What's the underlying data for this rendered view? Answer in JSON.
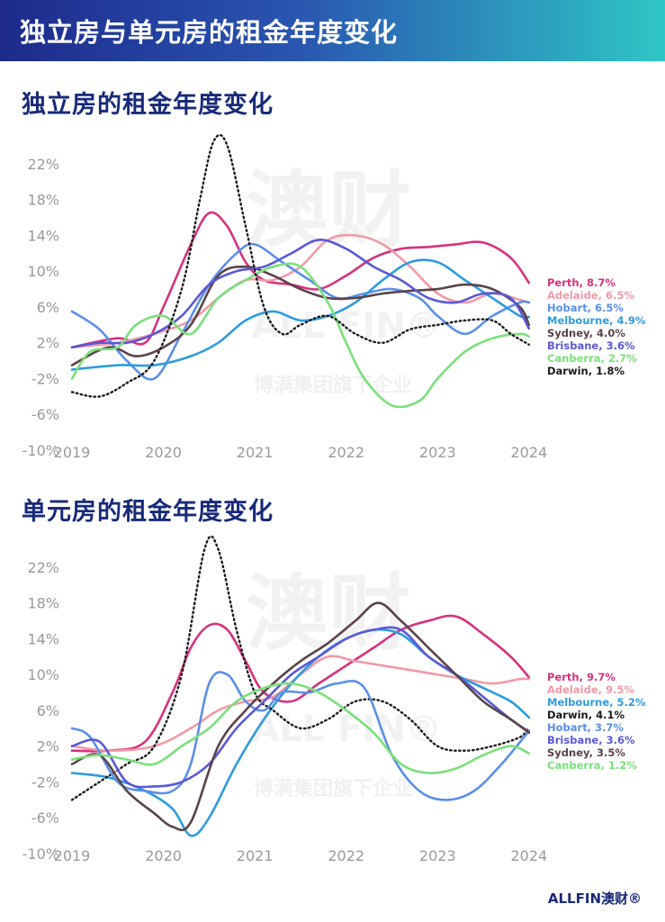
{
  "header": {
    "title": "独立房与单元房的租金年度变化"
  },
  "logo": {
    "text": "ALLFIN澳财®"
  },
  "watermark": {
    "text_top": "澳财",
    "text_mid": "ALL FIN®",
    "text_bottom": "博满集团旗下企业"
  },
  "chart_data": [
    {
      "type": "line",
      "title": "独立房的租金年度变化",
      "x_ticks": [
        "2019",
        "2020",
        "2021",
        "2022",
        "2023",
        "2024"
      ],
      "y_ticks": [
        "22%",
        "18%",
        "14%",
        "10%",
        "6%",
        "2%",
        "-2%",
        "-6%",
        "-10%"
      ],
      "ylim": [
        -10,
        24
      ],
      "xlim": [
        2019,
        2024.1
      ],
      "grid": false,
      "legend": "labels at line ends (right)",
      "series": [
        {
          "name": "Perth",
          "label": "Perth, 8.7%",
          "color": "#d6317f",
          "dotted": false,
          "x": [
            2019,
            2019.5,
            2019.8,
            2020,
            2020.3,
            2020.5,
            2020.7,
            2020.9,
            2021.1,
            2021.4,
            2021.7,
            2022,
            2022.3,
            2022.6,
            2022.9,
            2023.2,
            2023.5,
            2023.8,
            2024
          ],
          "y": [
            1.5,
            2.5,
            2,
            6,
            13,
            16.5,
            15,
            11,
            9,
            8.5,
            8,
            9.5,
            11.5,
            12.5,
            12.7,
            13,
            13.2,
            11.5,
            8.7
          ]
        },
        {
          "name": "Adelaide",
          "label": "Adelaide, 6.5%",
          "color": "#f09aa8",
          "dotted": false,
          "x": [
            2019,
            2019.5,
            2019.9,
            2020.3,
            2020.6,
            2020.9,
            2021.2,
            2021.5,
            2021.8,
            2022.1,
            2022.4,
            2022.7,
            2023,
            2023.3,
            2023.6,
            2023.9,
            2024
          ],
          "y": [
            1.5,
            2,
            3,
            4.5,
            7,
            9,
            9,
            10.5,
            13.5,
            14,
            13,
            10.5,
            7.5,
            6.5,
            7.5,
            6.8,
            6.5
          ]
        },
        {
          "name": "Hobart",
          "label": "Hobart, 6.5%",
          "color": "#5b8fe8",
          "dotted": false,
          "x": [
            2019,
            2019.3,
            2019.6,
            2019.9,
            2020.2,
            2020.5,
            2020.8,
            2021,
            2021.3,
            2021.6,
            2021.9,
            2022.2,
            2022.5,
            2022.8,
            2023,
            2023.3,
            2023.6,
            2023.9,
            2024
          ],
          "y": [
            5.5,
            3.5,
            0,
            -2,
            3,
            8.5,
            12,
            13,
            11,
            9,
            7,
            7.5,
            8,
            7,
            5,
            3,
            5,
            6.5,
            6.5
          ]
        },
        {
          "name": "Melbourne",
          "label": "Melbourne, 4.9%",
          "color": "#2e9be0",
          "dotted": false,
          "x": [
            2019,
            2019.5,
            2019.9,
            2020.3,
            2020.6,
            2020.9,
            2021.2,
            2021.5,
            2021.8,
            2022.1,
            2022.4,
            2022.7,
            2023,
            2023.3,
            2023.6,
            2023.9,
            2024
          ],
          "y": [
            -1,
            -0.5,
            -0.5,
            0.5,
            2,
            4.5,
            5.5,
            4.5,
            5,
            6.5,
            9,
            11,
            11,
            9,
            7,
            5,
            4.9
          ]
        },
        {
          "name": "Sydney",
          "label": "Sydney, 4.0%",
          "color": "#5a4348",
          "dotted": false,
          "x": [
            2019,
            2019.4,
            2019.7,
            2020,
            2020.3,
            2020.6,
            2020.9,
            2021.2,
            2021.5,
            2021.8,
            2022.1,
            2022.4,
            2022.7,
            2023,
            2023.3,
            2023.6,
            2023.9,
            2024
          ],
          "y": [
            -0.5,
            1.5,
            0.5,
            1.5,
            4,
            9.5,
            10.5,
            9.5,
            8,
            7,
            7,
            7.5,
            7.8,
            8,
            8.5,
            8,
            6,
            4
          ]
        },
        {
          "name": "Brisbane",
          "label": "Brisbane, 3.6%",
          "color": "#5b58d6",
          "dotted": false,
          "x": [
            2019,
            2019.3,
            2019.6,
            2019.9,
            2020.2,
            2020.5,
            2020.8,
            2021.1,
            2021.4,
            2021.7,
            2022,
            2022.3,
            2022.6,
            2022.9,
            2023.2,
            2023.5,
            2023.8,
            2024
          ],
          "y": [
            1.5,
            2,
            2,
            3,
            5,
            8.5,
            10,
            10.5,
            12,
            13.5,
            12.5,
            10.5,
            9,
            7,
            6.5,
            7.5,
            7,
            3.6
          ]
        },
        {
          "name": "Canberra",
          "label": "Canberra, 2.7%",
          "color": "#7ae07a",
          "dotted": false,
          "x": [
            2019,
            2019.2,
            2019.5,
            2019.7,
            2020,
            2020.3,
            2020.6,
            2020.9,
            2021.2,
            2021.5,
            2021.8,
            2022,
            2022.2,
            2022.5,
            2022.8,
            2023,
            2023.3,
            2023.6,
            2023.9,
            2024
          ],
          "y": [
            -2,
            1,
            1.5,
            4,
            5,
            3,
            7,
            9,
            10.5,
            10.5,
            6.5,
            2,
            -2,
            -5,
            -4.5,
            -2,
            1,
            2.5,
            3,
            2.7
          ]
        },
        {
          "name": "Darwin",
          "label": "Darwin, 1.8%",
          "color": "#1a1a1a",
          "dotted": true,
          "x": [
            2019,
            2019.3,
            2019.6,
            2019.9,
            2020.2,
            2020.4,
            2020.55,
            2020.7,
            2020.9,
            2021.1,
            2021.3,
            2021.5,
            2021.8,
            2022.1,
            2022.4,
            2022.7,
            2023,
            2023.3,
            2023.6,
            2023.8,
            2024
          ],
          "y": [
            -3.5,
            -4,
            -2.5,
            0,
            8,
            18,
            24.5,
            24,
            15,
            6,
            3,
            4,
            5,
            3,
            2,
            3.5,
            4,
            4.5,
            4.5,
            3,
            1.8
          ]
        }
      ]
    },
    {
      "type": "line",
      "title": "单元房的租金年度变化",
      "x_ticks": [
        "2019",
        "2020",
        "2021",
        "2022",
        "2023",
        "2024"
      ],
      "y_ticks": [
        "22%",
        "18%",
        "14%",
        "10%",
        "6%",
        "2%",
        "-2%",
        "-6%",
        "-10%"
      ],
      "ylim": [
        -10,
        24
      ],
      "xlim": [
        2019,
        2024.1
      ],
      "grid": false,
      "legend": "labels at line ends (right)",
      "series": [
        {
          "name": "Perth",
          "label": "Perth, 9.7%",
          "color": "#d6317f",
          "dotted": false,
          "x": [
            2019,
            2019.4,
            2019.8,
            2020.1,
            2020.3,
            2020.5,
            2020.7,
            2020.9,
            2021.1,
            2021.4,
            2021.7,
            2022,
            2022.3,
            2022.6,
            2022.9,
            2023.2,
            2023.5,
            2023.8,
            2024
          ],
          "y": [
            1.5,
            1.5,
            2.5,
            8,
            13,
            15.5,
            15,
            11.5,
            8,
            7,
            9,
            11,
            13,
            15,
            16,
            16.5,
            14.5,
            12,
            9.7
          ]
        },
        {
          "name": "Adelaide",
          "label": "Adelaide, 9.5%",
          "color": "#f09aa8",
          "dotted": false,
          "x": [
            2019,
            2019.4,
            2019.9,
            2020.3,
            2020.6,
            2020.9,
            2021.2,
            2021.5,
            2021.8,
            2022.1,
            2022.4,
            2022.7,
            2023,
            2023.3,
            2023.6,
            2023.9,
            2024
          ],
          "y": [
            2,
            1.5,
            2,
            4,
            6,
            7,
            7.5,
            10,
            12,
            11.5,
            11,
            10.5,
            10,
            9.5,
            9,
            9.5,
            9.5
          ]
        },
        {
          "name": "Melbourne",
          "label": "Melbourne, 5.2%",
          "color": "#2e9be0",
          "dotted": false,
          "x": [
            2019,
            2019.4,
            2019.8,
            2020.1,
            2020.3,
            2020.5,
            2020.8,
            2021.1,
            2021.4,
            2021.7,
            2022,
            2022.3,
            2022.6,
            2022.9,
            2023.2,
            2023.5,
            2023.8,
            2024
          ],
          "y": [
            -1,
            -1.5,
            -3,
            -5,
            -8,
            -6,
            0,
            5,
            9,
            12,
            14,
            15,
            14.5,
            12,
            10,
            8.5,
            7,
            5.2
          ]
        },
        {
          "name": "Darwin",
          "label": "Darwin, 4.1%",
          "color": "#1a1a1a",
          "dotted": true,
          "x": [
            2019,
            2019.3,
            2019.6,
            2019.9,
            2020.2,
            2020.45,
            2020.6,
            2020.8,
            2021,
            2021.2,
            2021.5,
            2021.8,
            2022.1,
            2022.4,
            2022.7,
            2023,
            2023.3,
            2023.6,
            2023.9,
            2024
          ],
          "y": [
            -4,
            -2,
            0,
            2,
            10,
            24,
            24,
            15,
            8,
            6,
            4,
            5,
            7,
            7,
            5,
            2,
            1.5,
            2,
            3,
            4.1
          ]
        },
        {
          "name": "Hobart",
          "label": "Hobart, 3.7%",
          "color": "#5b8fe8",
          "dotted": false,
          "x": [
            2019,
            2019.2,
            2019.5,
            2019.8,
            2020.1,
            2020.3,
            2020.5,
            2020.7,
            2020.9,
            2021.1,
            2021.3,
            2021.6,
            2021.9,
            2022.2,
            2022.5,
            2022.8,
            2023.1,
            2023.4,
            2023.7,
            2024
          ],
          "y": [
            4,
            3,
            -2,
            -3,
            -3,
            0,
            9,
            10,
            7,
            6,
            8,
            8,
            9,
            8.5,
            1,
            -3,
            -4,
            -3,
            0,
            3.7
          ]
        },
        {
          "name": "Brisbane",
          "label": "Brisbane, 3.6%",
          "color": "#5b58d6",
          "dotted": false,
          "x": [
            2019,
            2019.3,
            2019.6,
            2019.9,
            2020.2,
            2020.5,
            2020.8,
            2021.1,
            2021.4,
            2021.7,
            2022,
            2022.3,
            2022.6,
            2022.9,
            2023.2,
            2023.5,
            2023.8,
            2024
          ],
          "y": [
            2,
            2.5,
            -2,
            -2.5,
            -2,
            0,
            4,
            7,
            10,
            12,
            14,
            15,
            15,
            12,
            10,
            7.5,
            5,
            3.6
          ]
        },
        {
          "name": "Sydney",
          "label": "Sydney, 3.5%",
          "color": "#5a4348",
          "dotted": false,
          "x": [
            2019,
            2019.3,
            2019.6,
            2019.9,
            2020.1,
            2020.3,
            2020.6,
            2020.9,
            2021.2,
            2021.5,
            2021.8,
            2022.1,
            2022.35,
            2022.6,
            2022.9,
            2023.2,
            2023.5,
            2023.8,
            2024
          ],
          "y": [
            0,
            1,
            -3,
            -5.5,
            -7,
            -6.5,
            2,
            6,
            9,
            11.5,
            13.5,
            16,
            18,
            16,
            13,
            10,
            7,
            5,
            3.5
          ]
        },
        {
          "name": "Canberra",
          "label": "Canberra, 1.2%",
          "color": "#7ae07a",
          "dotted": false,
          "x": [
            2019,
            2019.3,
            2019.6,
            2019.9,
            2020.2,
            2020.5,
            2020.8,
            2021.1,
            2021.4,
            2021.7,
            2022,
            2022.3,
            2022.6,
            2022.9,
            2023.2,
            2023.5,
            2023.8,
            2024
          ],
          "y": [
            0.5,
            1,
            0.5,
            0,
            2,
            4,
            7,
            8.5,
            9,
            8,
            6,
            3.5,
            0,
            -1,
            -0.5,
            1,
            2,
            1.2
          ]
        }
      ]
    }
  ]
}
